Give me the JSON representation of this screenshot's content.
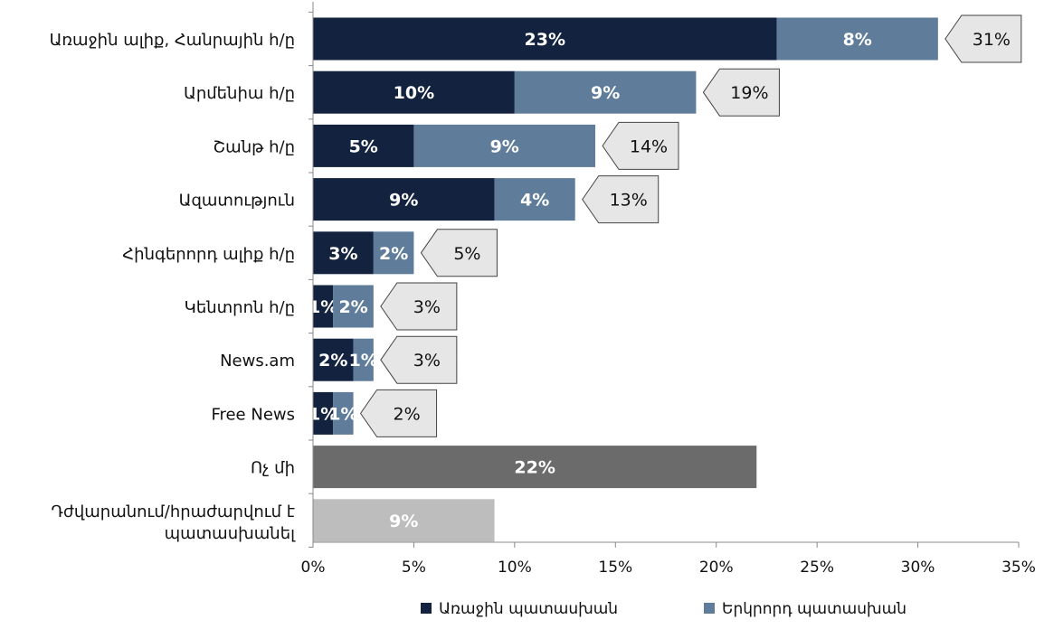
{
  "chart_data": {
    "type": "bar",
    "orientation": "horizontal",
    "stacked": true,
    "categories": [
      "Առաջին ալիք, Հանրային հ/ը",
      "Արմենիա հ/ը",
      "Շանթ հ/ը",
      "Ազատություն",
      "Հինգերորդ ալիք հ/ը",
      "Կենտրոն հ/ը",
      "News.am",
      "Free News",
      "Ոչ մի",
      "Դժվարանում/հրաժարվում է պատասխանել"
    ],
    "series": [
      {
        "name": "Առաջին պատասխան",
        "color": "#12223f",
        "values": [
          23,
          10,
          5,
          9,
          3,
          1,
          2,
          1,
          null,
          null
        ],
        "labels": [
          "23%",
          "10%",
          "5%",
          "9%",
          "3%",
          "1%",
          "2%",
          "1%",
          "",
          ""
        ]
      },
      {
        "name": "Երկրորդ պատասխան",
        "color": "#5f7d9b",
        "values": [
          8,
          9,
          9,
          4,
          2,
          2,
          1,
          1,
          null,
          null
        ],
        "labels": [
          "8%",
          "9%",
          "9%",
          "4%",
          "2%",
          "2%",
          "1%",
          "1%",
          "",
          ""
        ]
      }
    ],
    "totals": [
      31,
      19,
      14,
      13,
      5,
      3,
      3,
      2,
      null,
      null
    ],
    "total_labels": [
      "31%",
      "19%",
      "14%",
      "13%",
      "5%",
      "3%",
      "3%",
      "2%",
      "",
      ""
    ],
    "single_bars": [
      {
        "category_index": 8,
        "value": 22,
        "label": "22%",
        "color": "#6b6b6b"
      },
      {
        "category_index": 9,
        "value": 9,
        "label": "9%",
        "color": "#bdbdbd"
      }
    ],
    "xlim": [
      0,
      35
    ],
    "xticks": [
      0,
      5,
      10,
      15,
      20,
      25,
      30,
      35
    ],
    "xtick_labels": [
      "0%",
      "5%",
      "10%",
      "15%",
      "20%",
      "25%",
      "30%",
      "35%"
    ],
    "legend_position": "bottom",
    "grid": false
  }
}
